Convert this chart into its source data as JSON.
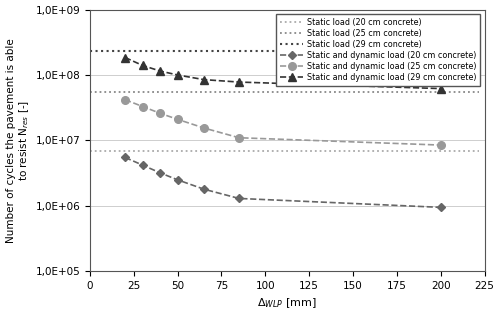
{
  "title": "",
  "xlabel": "$\\Delta_{WLP}$ [mm]",
  "ylabel": "Number of cycles the pavement is able\nto resist N$_{res}$ [-]",
  "xlim": [
    0,
    225
  ],
  "ylim": [
    100000.0,
    1000000000.0
  ],
  "xticks": [
    0,
    25,
    50,
    75,
    100,
    125,
    150,
    175,
    200,
    225
  ],
  "static_29_value": 230000000.0,
  "static_25_value": 55000000.0,
  "static_20_value": 6800000.0,
  "dyn_29_x": [
    20,
    30,
    40,
    50,
    65,
    85,
    200
  ],
  "dyn_29_y": [
    185000000.0,
    140000000.0,
    115000000.0,
    100000000.0,
    85000000.0,
    78000000.0,
    62000000.0
  ],
  "dyn_25_x": [
    20,
    30,
    40,
    50,
    65,
    85,
    200
  ],
  "dyn_25_y": [
    42000000.0,
    33000000.0,
    26000000.0,
    21000000.0,
    15500000.0,
    11000000.0,
    8500000.0
  ],
  "dyn_20_x": [
    20,
    30,
    40,
    50,
    65,
    85,
    200
  ],
  "dyn_20_y": [
    5500000.0,
    4200000.0,
    3200000.0,
    2500000.0,
    1800000.0,
    1300000.0,
    950000.0
  ],
  "color_static_20": "#aaaaaa",
  "color_static_25": "#888888",
  "color_static_29": "#444444",
  "color_dyn_20": "#666666",
  "color_dyn_25": "#999999",
  "color_dyn_29": "#333333",
  "legend_labels_static": [
    "Static load (20 cm concrete)",
    "Static load (25 cm concrete)",
    "Static load (29 cm concrete)"
  ],
  "legend_labels_dyn": [
    "Static and dynamic load (20 cm concrete)",
    "Static and dynamic load (25 cm concrete)",
    "Static and dynamic load (29 cm concrete)"
  ]
}
